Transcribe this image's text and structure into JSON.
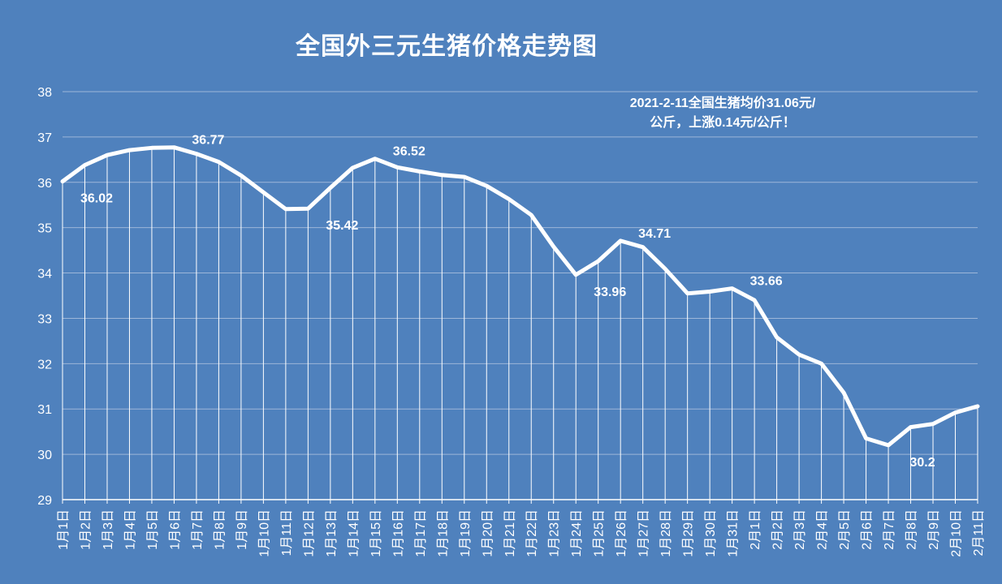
{
  "chart_data": {
    "type": "line",
    "title": "全国外三元生猪价格走势图",
    "annotation_lines": [
      "2021-2-11全国生猪均价31.06元/",
      "公斤，上涨0.14元/公斤！"
    ],
    "ylim": [
      29,
      38
    ],
    "yticks": [
      29,
      30,
      31,
      32,
      33,
      34,
      35,
      36,
      37,
      38
    ],
    "grid": "horizontal",
    "legend": "none",
    "colors": {
      "background": "#4f81bd",
      "line": "#ffffff",
      "grid": "#9db6d9"
    },
    "categories": [
      "1月1日",
      "1月2日",
      "1月3日",
      "1月4日",
      "1月5日",
      "1月6日",
      "1月7日",
      "1月8日",
      "1月9日",
      "1月10日",
      "1月11日",
      "1月12日",
      "1月13日",
      "1月14日",
      "1月15日",
      "1月16日",
      "1月17日",
      "1月18日",
      "1月19日",
      "1月20日",
      "1月21日",
      "1月22日",
      "1月23日",
      "1月24日",
      "1月25日",
      "1月26日",
      "1月27日",
      "1月28日",
      "1月29日",
      "1月30日",
      "1月31日",
      "2月1日",
      "2月2日",
      "2月3日",
      "2月4日",
      "2月5日",
      "2月6日",
      "2月7日",
      "2月8日",
      "2月9日",
      "2月10日",
      "2月11日"
    ],
    "values": [
      36.02,
      36.38,
      36.6,
      36.71,
      36.76,
      36.77,
      36.63,
      36.45,
      36.15,
      35.78,
      35.41,
      35.42,
      35.88,
      36.32,
      36.52,
      36.33,
      36.24,
      36.16,
      36.12,
      35.92,
      35.63,
      35.28,
      34.58,
      33.96,
      34.26,
      34.71,
      34.57,
      34.09,
      33.55,
      33.59,
      33.66,
      33.4,
      32.58,
      32.2,
      32.0,
      31.36,
      30.35,
      30.2,
      30.6,
      30.67,
      30.92,
      31.06
    ],
    "data_labels": [
      {
        "index": 0,
        "text": "36.02"
      },
      {
        "index": 5,
        "text": "36.77"
      },
      {
        "index": 11,
        "text": "35.42"
      },
      {
        "index": 14,
        "text": "36.52"
      },
      {
        "index": 23,
        "text": "33.96"
      },
      {
        "index": 25,
        "text": "34.71"
      },
      {
        "index": 30,
        "text": "33.66"
      },
      {
        "index": 37,
        "text": "30.2"
      }
    ]
  }
}
